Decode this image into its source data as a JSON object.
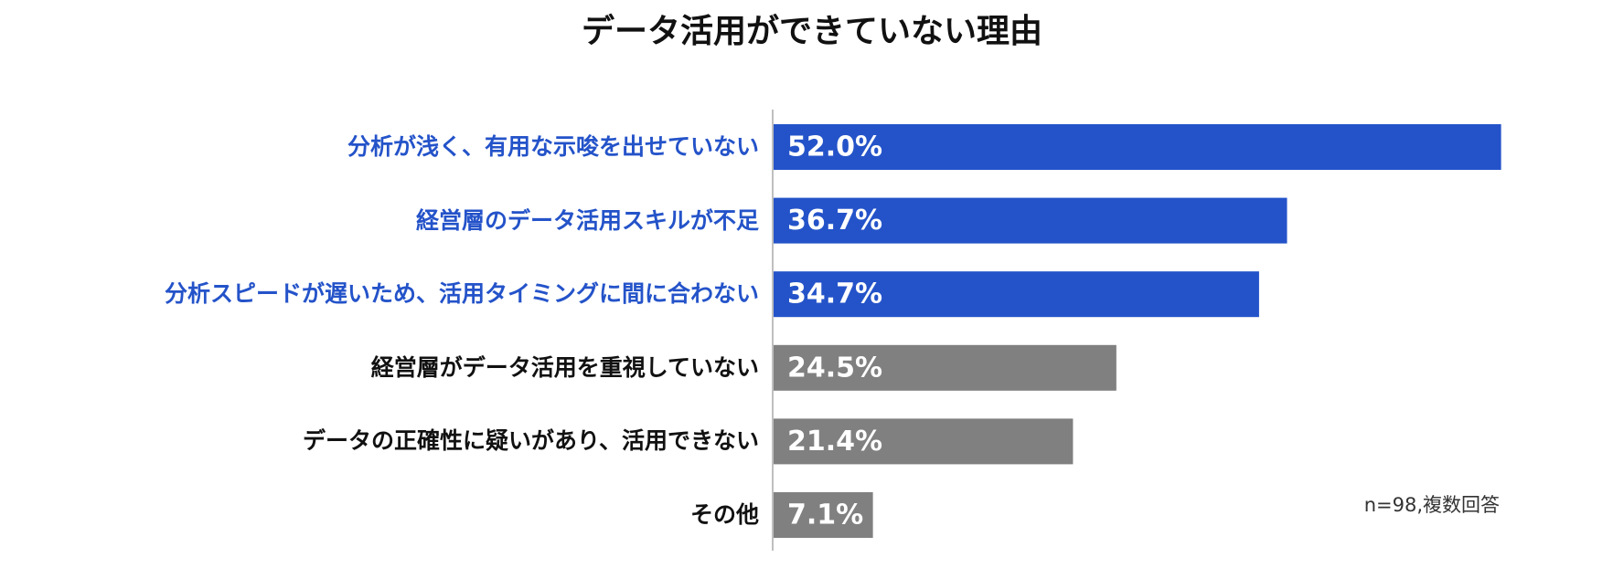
{
  "chart_data": {
    "type": "bar",
    "orientation": "horizontal",
    "title": "データ活用ができていない理由",
    "categories": [
      "分析が浅く、有用な示唆を出せていない",
      "経営層のデータ活用スキルが不足",
      "分析スピードが遅いため、活用タイミングに間に合わない",
      "経営層がデータ活用を重視していない",
      "データの正確性に疑いがあり、活用できない",
      "その他"
    ],
    "values": [
      52.0,
      36.7,
      34.7,
      24.5,
      21.4,
      7.1
    ],
    "value_labels": [
      "52.0%",
      "36.7%",
      "34.7%",
      "24.5%",
      "21.4%",
      "7.1%"
    ],
    "unit": "%",
    "highlighted": [
      true,
      true,
      true,
      false,
      false,
      false
    ],
    "colors": {
      "highlight_bar": "#2453c9",
      "highlight_label": "#2453c9",
      "normal_bar": "#808080",
      "normal_label": "#111111",
      "axis": "#bfbfbf",
      "value_text": "#ffffff"
    },
    "note": "n=98,複数回答",
    "grid": false,
    "legend": "none"
  }
}
